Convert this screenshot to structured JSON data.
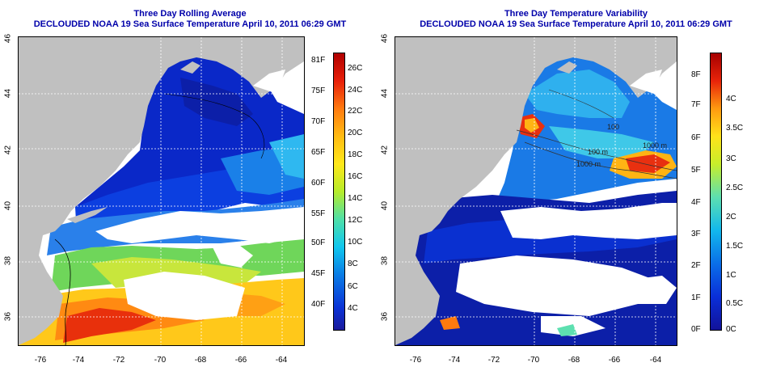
{
  "left_panel": {
    "title": "Three Day Rolling Average",
    "subtitle": "DECLOUDED NOAA 19 Sea Surface Temperature April 10, 2011 06:29 GMT",
    "y_ticks": [
      "46",
      "44",
      "42",
      "40",
      "38",
      "36"
    ],
    "x_ticks": [
      "-76",
      "-74",
      "-72",
      "-70",
      "-68",
      "-66",
      "-64"
    ],
    "colorbar_f": [
      "81F",
      "75F",
      "70F",
      "65F",
      "60F",
      "55F",
      "50F",
      "45F",
      "40F"
    ],
    "colorbar_c": [
      "26C",
      "24C",
      "22C",
      "20C",
      "18C",
      "16C",
      "14C",
      "12C",
      "10C",
      "8C",
      "6C",
      "4C"
    ]
  },
  "right_panel": {
    "title": "Three Day Temperature Variability",
    "subtitle": "DECLOUDED NOAA 19 Sea Surface Temperature April 10, 2011 06:29 GMT",
    "y_ticks": [
      "46",
      "44",
      "42",
      "40",
      "38",
      "36"
    ],
    "x_ticks": [
      "-76",
      "-74",
      "-72",
      "-70",
      "-68",
      "-66",
      "-64"
    ],
    "colorbar_f": [
      "8F",
      "7F",
      "6F",
      "5F",
      "4F",
      "3F",
      "2F",
      "1F",
      "0F"
    ],
    "colorbar_c": [
      "4C",
      "3.5C",
      "3C",
      "2.5C",
      "2C",
      "1.5C",
      "1C",
      "0.5C",
      "0C"
    ],
    "contour_labels": [
      "100",
      "100 m",
      "1000 m",
      "1000 m"
    ]
  },
  "colors": {
    "title": "#0000aa",
    "land": "#c0c0c0",
    "cloud": "#ffffff",
    "gridline": "#ffffff"
  }
}
